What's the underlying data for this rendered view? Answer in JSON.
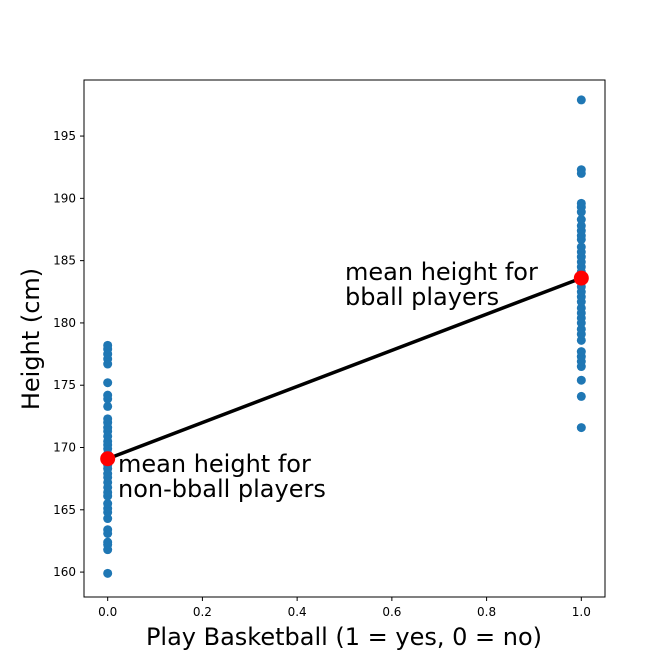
{
  "chart_data": {
    "type": "scatter",
    "xlabel": "Play Basketball (1 = yes, 0 = no)",
    "ylabel": "Height (cm)",
    "xlim": [
      -0.05,
      1.05
    ],
    "ylim": [
      158,
      199.5
    ],
    "xticks": [
      0.0,
      0.2,
      0.4,
      0.6,
      0.8,
      1.0
    ],
    "xtick_labels": [
      "0.0",
      "0.2",
      "0.4",
      "0.6",
      "0.8",
      "1.0"
    ],
    "yticks": [
      160,
      165,
      170,
      175,
      180,
      185,
      190,
      195
    ],
    "ytick_labels": [
      "160",
      "165",
      "170",
      "175",
      "180",
      "185",
      "190",
      "195"
    ],
    "grid": false,
    "colors": {
      "points": "#1f77b4",
      "means": "#ff0000",
      "line": "#000000"
    },
    "series": [
      {
        "x_value": 0,
        "values": [
          159.9,
          161.8,
          162.2,
          162.4,
          163.1,
          163.4,
          164.3,
          164.8,
          165.1,
          165.5,
          166.1,
          166.4,
          166.8,
          167.2,
          167.6,
          167.9,
          168.3,
          168.6,
          168.9,
          169.2,
          169.5,
          169.9,
          170.2,
          170.5,
          170.9,
          171.3,
          171.6,
          172.0,
          172.3,
          173.3,
          173.9,
          174.2,
          175.2,
          176.7,
          177.1,
          177.5,
          177.9,
          178.2
        ]
      },
      {
        "x_value": 1,
        "values": [
          171.6,
          174.1,
          175.4,
          176.5,
          176.9,
          177.3,
          177.7,
          178.6,
          179.1,
          179.5,
          180.0,
          180.4,
          180.8,
          181.2,
          181.7,
          182.1,
          182.5,
          182.9,
          183.3,
          183.7,
          184.1,
          184.5,
          184.9,
          185.3,
          185.7,
          186.1,
          186.7,
          187.0,
          187.4,
          187.8,
          188.3,
          188.9,
          189.3,
          189.6,
          192.0,
          192.3,
          197.9
        ]
      }
    ],
    "means": [
      {
        "x": 0,
        "y": 169.1
      },
      {
        "x": 1,
        "y": 183.6
      }
    ],
    "annotations": [
      {
        "lines": [
          "mean height for",
          "non-bball players"
        ]
      },
      {
        "lines": [
          "mean height for",
          "bball players"
        ]
      }
    ]
  }
}
